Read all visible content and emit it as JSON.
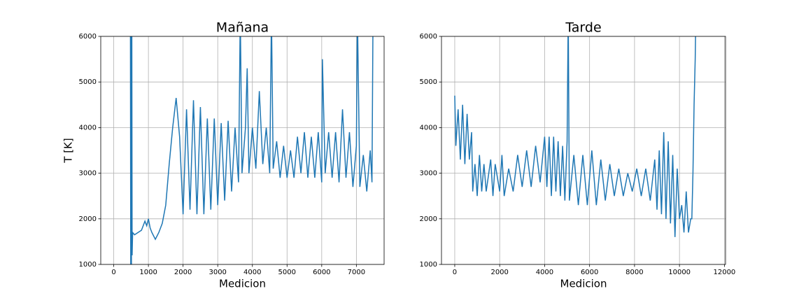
{
  "chart_data": [
    {
      "type": "line",
      "title": "Mañana",
      "xlabel": "Medicion",
      "ylabel": "T [K]",
      "color": "#1f77b4",
      "grid": true,
      "xlim": [
        -375,
        7800
      ],
      "ylim": [
        1000,
        6000
      ],
      "xticks": [
        0,
        1000,
        2000,
        3000,
        4000,
        5000,
        6000,
        7000
      ],
      "yticks": [
        1000,
        2000,
        3000,
        4000,
        5000,
        6000
      ],
      "x": [
        480,
        490,
        500,
        510,
        520,
        530,
        545,
        600,
        700,
        800,
        900,
        950,
        1000,
        1050,
        1100,
        1200,
        1300,
        1400,
        1500,
        1600,
        1700,
        1800,
        1900,
        2000,
        2100,
        2200,
        2300,
        2400,
        2500,
        2600,
        2700,
        2800,
        2900,
        3000,
        3100,
        3200,
        3300,
        3400,
        3500,
        3600,
        3650,
        3700,
        3800,
        3850,
        3900,
        4000,
        4100,
        4200,
        4300,
        4400,
        4500,
        4550,
        4600,
        4700,
        4800,
        4900,
        5000,
        5100,
        5200,
        5300,
        5400,
        5500,
        5600,
        5700,
        5800,
        5900,
        6000,
        6020,
        6100,
        6200,
        6300,
        6400,
        6500,
        6600,
        6700,
        6800,
        6900,
        7000,
        7030,
        7100,
        7200,
        7300,
        7400,
        7450,
        7480
      ],
      "values": [
        7000,
        800,
        7000,
        800,
        7000,
        1200,
        1700,
        1650,
        1700,
        1750,
        1950,
        1850,
        2000,
        1800,
        1700,
        1550,
        1700,
        1900,
        2300,
        3200,
        4000,
        4650,
        3800,
        2100,
        4400,
        2200,
        4600,
        2100,
        4450,
        2100,
        4200,
        2200,
        4200,
        2300,
        4100,
        2400,
        4150,
        2600,
        4000,
        2800,
        6500,
        3000,
        4000,
        5300,
        3000,
        4000,
        3100,
        4800,
        3200,
        4000,
        3000,
        6500,
        3100,
        3700,
        2900,
        3600,
        2900,
        3500,
        2900,
        3800,
        3000,
        3900,
        2900,
        3800,
        2900,
        3900,
        2800,
        5500,
        3000,
        3900,
        2900,
        3900,
        2800,
        4400,
        2900,
        3900,
        2700,
        3600,
        6500,
        2700,
        3400,
        2600,
        3500,
        2800,
        6500
      ]
    },
    {
      "type": "line",
      "title": "Tarde",
      "xlabel": "Medicion",
      "color": "#1f77b4",
      "grid": true,
      "xlim": [
        -590,
        12050
      ],
      "ylim": [
        1000,
        6000
      ],
      "xticks": [
        0,
        2000,
        4000,
        6000,
        8000,
        10000,
        12000
      ],
      "yticks": [
        1000,
        2000,
        3000,
        4000,
        5000,
        6000
      ],
      "x": [
        0,
        50,
        150,
        250,
        350,
        450,
        550,
        650,
        750,
        800,
        900,
        1000,
        1100,
        1200,
        1300,
        1400,
        1600,
        1700,
        1800,
        2000,
        2100,
        2200,
        2400,
        2600,
        2800,
        3000,
        3200,
        3400,
        3600,
        3800,
        4000,
        4100,
        4200,
        4300,
        4400,
        4500,
        4600,
        4700,
        4800,
        4900,
        5000,
        5050,
        5100,
        5300,
        5500,
        5700,
        5900,
        6100,
        6300,
        6500,
        6700,
        6900,
        7100,
        7300,
        7500,
        7700,
        7900,
        8100,
        8300,
        8500,
        8700,
        8900,
        9000,
        9100,
        9200,
        9300,
        9400,
        9500,
        9600,
        9700,
        9800,
        9900,
        10000,
        10100,
        10200,
        10300,
        10400,
        10500,
        10550,
        10600,
        10650,
        10700,
        10730
      ],
      "values": [
        4700,
        3600,
        4400,
        3300,
        4500,
        3200,
        4300,
        3300,
        3900,
        2600,
        3200,
        2500,
        3400,
        2600,
        3200,
        2600,
        3300,
        2500,
        3200,
        2600,
        3400,
        2500,
        3100,
        2600,
        3400,
        2700,
        3500,
        2700,
        3600,
        2800,
        3800,
        2700,
        3800,
        2500,
        3800,
        2600,
        3700,
        2500,
        3600,
        2400,
        3700,
        6500,
        2400,
        3400,
        2300,
        3400,
        2300,
        3500,
        2300,
        3300,
        2400,
        3200,
        2500,
        3100,
        2500,
        3000,
        2600,
        3100,
        2500,
        3100,
        2400,
        3300,
        2200,
        3500,
        2100,
        3900,
        2000,
        3700,
        1900,
        3400,
        1600,
        3100,
        2000,
        2300,
        1700,
        2600,
        1700,
        2000,
        2000,
        3000,
        4500,
        5500,
        6500
      ]
    }
  ]
}
